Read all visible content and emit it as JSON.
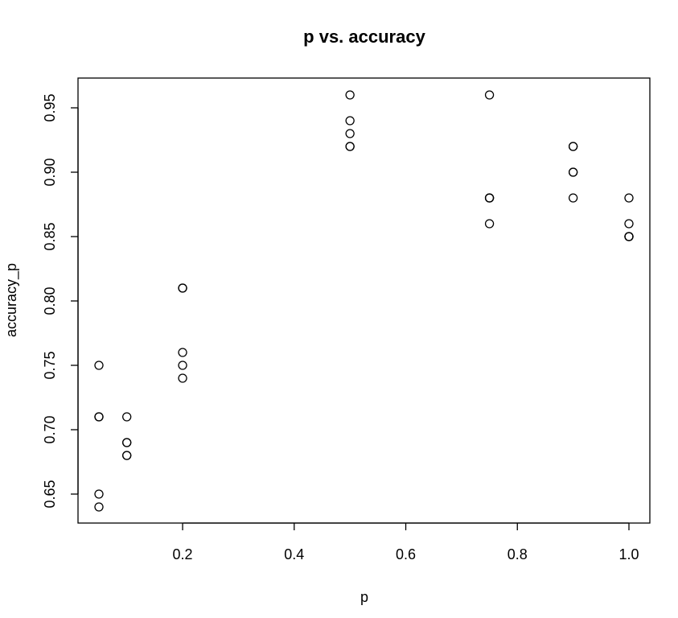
{
  "chart_data": {
    "type": "scatter",
    "title": "p vs. accuracy",
    "xlabel": "p",
    "ylabel": "accuracy_p",
    "xlim": [
      0.05,
      1.0
    ],
    "ylim": [
      0.64,
      0.96
    ],
    "xticks": [
      0.2,
      0.4,
      0.6,
      0.8,
      1.0
    ],
    "xtick_labels": [
      "0.2",
      "0.4",
      "0.6",
      "0.8",
      "1.0"
    ],
    "yticks": [
      0.65,
      0.7,
      0.75,
      0.8,
      0.85,
      0.9,
      0.95
    ],
    "ytick_labels": [
      "0.65",
      "0.70",
      "0.75",
      "0.80",
      "0.85",
      "0.90",
      "0.95"
    ],
    "grid": false,
    "points": [
      {
        "x": 0.05,
        "y": 0.75
      },
      {
        "x": 0.05,
        "y": 0.71
      },
      {
        "x": 0.05,
        "y": 0.71
      },
      {
        "x": 0.05,
        "y": 0.65
      },
      {
        "x": 0.05,
        "y": 0.64
      },
      {
        "x": 0.1,
        "y": 0.71
      },
      {
        "x": 0.1,
        "y": 0.69
      },
      {
        "x": 0.1,
        "y": 0.69
      },
      {
        "x": 0.1,
        "y": 0.68
      },
      {
        "x": 0.1,
        "y": 0.68
      },
      {
        "x": 0.2,
        "y": 0.81
      },
      {
        "x": 0.2,
        "y": 0.81
      },
      {
        "x": 0.2,
        "y": 0.76
      },
      {
        "x": 0.2,
        "y": 0.75
      },
      {
        "x": 0.2,
        "y": 0.74
      },
      {
        "x": 0.5,
        "y": 0.96
      },
      {
        "x": 0.5,
        "y": 0.94
      },
      {
        "x": 0.5,
        "y": 0.93
      },
      {
        "x": 0.5,
        "y": 0.92
      },
      {
        "x": 0.5,
        "y": 0.92
      },
      {
        "x": 0.75,
        "y": 0.96
      },
      {
        "x": 0.75,
        "y": 0.88
      },
      {
        "x": 0.75,
        "y": 0.88
      },
      {
        "x": 0.75,
        "y": 0.88
      },
      {
        "x": 0.75,
        "y": 0.86
      },
      {
        "x": 0.9,
        "y": 0.92
      },
      {
        "x": 0.9,
        "y": 0.92
      },
      {
        "x": 0.9,
        "y": 0.9
      },
      {
        "x": 0.9,
        "y": 0.9
      },
      {
        "x": 0.9,
        "y": 0.88
      },
      {
        "x": 1.0,
        "y": 0.88
      },
      {
        "x": 1.0,
        "y": 0.86
      },
      {
        "x": 1.0,
        "y": 0.85
      },
      {
        "x": 1.0,
        "y": 0.85
      },
      {
        "x": 1.0,
        "y": 0.85
      }
    ]
  }
}
